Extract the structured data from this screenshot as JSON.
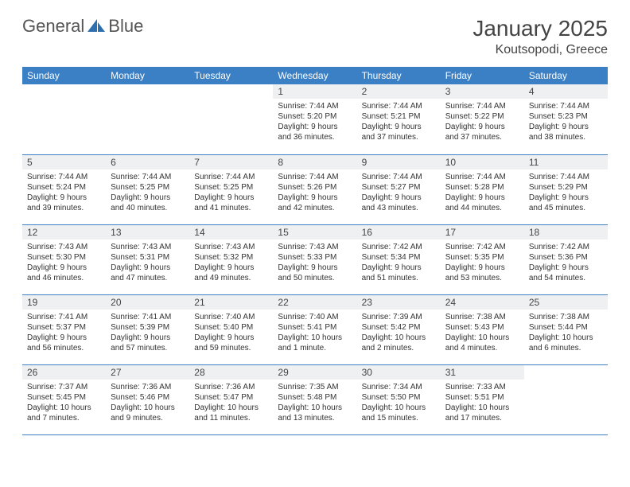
{
  "logo": {
    "name_general": "General",
    "name_blue": "Blue"
  },
  "title": "January 2025",
  "location": "Koutsopodi, Greece",
  "headerColor": "#3b7fc4",
  "dayHeaders": [
    "Sunday",
    "Monday",
    "Tuesday",
    "Wednesday",
    "Thursday",
    "Friday",
    "Saturday"
  ],
  "weeks": [
    [
      null,
      null,
      null,
      {
        "n": "1",
        "sunrise": "7:44 AM",
        "sunset": "5:20 PM",
        "dl": "9 hours and 36 minutes."
      },
      {
        "n": "2",
        "sunrise": "7:44 AM",
        "sunset": "5:21 PM",
        "dl": "9 hours and 37 minutes."
      },
      {
        "n": "3",
        "sunrise": "7:44 AM",
        "sunset": "5:22 PM",
        "dl": "9 hours and 37 minutes."
      },
      {
        "n": "4",
        "sunrise": "7:44 AM",
        "sunset": "5:23 PM",
        "dl": "9 hours and 38 minutes."
      }
    ],
    [
      {
        "n": "5",
        "sunrise": "7:44 AM",
        "sunset": "5:24 PM",
        "dl": "9 hours and 39 minutes."
      },
      {
        "n": "6",
        "sunrise": "7:44 AM",
        "sunset": "5:25 PM",
        "dl": "9 hours and 40 minutes."
      },
      {
        "n": "7",
        "sunrise": "7:44 AM",
        "sunset": "5:25 PM",
        "dl": "9 hours and 41 minutes."
      },
      {
        "n": "8",
        "sunrise": "7:44 AM",
        "sunset": "5:26 PM",
        "dl": "9 hours and 42 minutes."
      },
      {
        "n": "9",
        "sunrise": "7:44 AM",
        "sunset": "5:27 PM",
        "dl": "9 hours and 43 minutes."
      },
      {
        "n": "10",
        "sunrise": "7:44 AM",
        "sunset": "5:28 PM",
        "dl": "9 hours and 44 minutes."
      },
      {
        "n": "11",
        "sunrise": "7:44 AM",
        "sunset": "5:29 PM",
        "dl": "9 hours and 45 minutes."
      }
    ],
    [
      {
        "n": "12",
        "sunrise": "7:43 AM",
        "sunset": "5:30 PM",
        "dl": "9 hours and 46 minutes."
      },
      {
        "n": "13",
        "sunrise": "7:43 AM",
        "sunset": "5:31 PM",
        "dl": "9 hours and 47 minutes."
      },
      {
        "n": "14",
        "sunrise": "7:43 AM",
        "sunset": "5:32 PM",
        "dl": "9 hours and 49 minutes."
      },
      {
        "n": "15",
        "sunrise": "7:43 AM",
        "sunset": "5:33 PM",
        "dl": "9 hours and 50 minutes."
      },
      {
        "n": "16",
        "sunrise": "7:42 AM",
        "sunset": "5:34 PM",
        "dl": "9 hours and 51 minutes."
      },
      {
        "n": "17",
        "sunrise": "7:42 AM",
        "sunset": "5:35 PM",
        "dl": "9 hours and 53 minutes."
      },
      {
        "n": "18",
        "sunrise": "7:42 AM",
        "sunset": "5:36 PM",
        "dl": "9 hours and 54 minutes."
      }
    ],
    [
      {
        "n": "19",
        "sunrise": "7:41 AM",
        "sunset": "5:37 PM",
        "dl": "9 hours and 56 minutes."
      },
      {
        "n": "20",
        "sunrise": "7:41 AM",
        "sunset": "5:39 PM",
        "dl": "9 hours and 57 minutes."
      },
      {
        "n": "21",
        "sunrise": "7:40 AM",
        "sunset": "5:40 PM",
        "dl": "9 hours and 59 minutes."
      },
      {
        "n": "22",
        "sunrise": "7:40 AM",
        "sunset": "5:41 PM",
        "dl": "10 hours and 1 minute."
      },
      {
        "n": "23",
        "sunrise": "7:39 AM",
        "sunset": "5:42 PM",
        "dl": "10 hours and 2 minutes."
      },
      {
        "n": "24",
        "sunrise": "7:38 AM",
        "sunset": "5:43 PM",
        "dl": "10 hours and 4 minutes."
      },
      {
        "n": "25",
        "sunrise": "7:38 AM",
        "sunset": "5:44 PM",
        "dl": "10 hours and 6 minutes."
      }
    ],
    [
      {
        "n": "26",
        "sunrise": "7:37 AM",
        "sunset": "5:45 PM",
        "dl": "10 hours and 7 minutes."
      },
      {
        "n": "27",
        "sunrise": "7:36 AM",
        "sunset": "5:46 PM",
        "dl": "10 hours and 9 minutes."
      },
      {
        "n": "28",
        "sunrise": "7:36 AM",
        "sunset": "5:47 PM",
        "dl": "10 hours and 11 minutes."
      },
      {
        "n": "29",
        "sunrise": "7:35 AM",
        "sunset": "5:48 PM",
        "dl": "10 hours and 13 minutes."
      },
      {
        "n": "30",
        "sunrise": "7:34 AM",
        "sunset": "5:50 PM",
        "dl": "10 hours and 15 minutes."
      },
      {
        "n": "31",
        "sunrise": "7:33 AM",
        "sunset": "5:51 PM",
        "dl": "10 hours and 17 minutes."
      },
      null
    ]
  ],
  "labels": {
    "sunrise": "Sunrise:",
    "sunset": "Sunset:",
    "daylight": "Daylight:"
  }
}
